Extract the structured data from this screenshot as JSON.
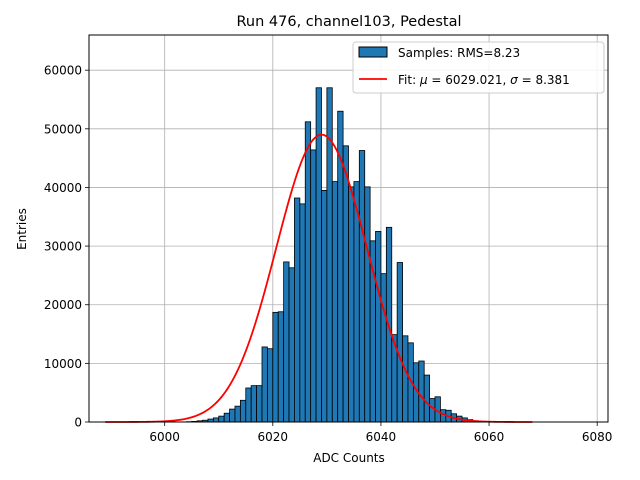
{
  "chart_data": {
    "type": "bar",
    "title": "Run 476, channel103, Pedestal",
    "xlabel": "ADC Counts",
    "ylabel": "Entries",
    "xlim": [
      5986,
      6082
    ],
    "ylim": [
      0,
      66000
    ],
    "xticks": [
      6000,
      6020,
      6040,
      6060,
      6080
    ],
    "yticks": [
      0,
      10000,
      20000,
      30000,
      40000,
      50000,
      60000
    ],
    "grid": true,
    "legend_position": "top-right",
    "colors": {
      "bars": "#1f77b4",
      "bar_edge": "#000000",
      "fit": "#ff0000",
      "grid": "#b0b0b0"
    },
    "histogram": {
      "name": "Samples: RMS=8.23",
      "bin_edges_start": 5990,
      "bin_width": 1,
      "counts": [
        0,
        0,
        0,
        0,
        0,
        0,
        0,
        0,
        0,
        0,
        0,
        0,
        0,
        20,
        50,
        100,
        200,
        300,
        500,
        700,
        1000,
        1500,
        2200,
        2700,
        3700,
        5800,
        6200,
        6200,
        12800,
        12500,
        18700,
        18800,
        27300,
        26300,
        38200,
        37200,
        51200,
        46400,
        57000,
        39500,
        57000,
        41000,
        53000,
        47100,
        40100,
        41000,
        46300,
        40100,
        30900,
        32500,
        25300,
        33200,
        14900,
        27200,
        14700,
        13500,
        10100,
        10400,
        8000,
        4000,
        4300,
        2100,
        2000,
        1400,
        1000,
        700,
        400,
        200,
        100,
        50,
        20,
        0,
        0,
        0,
        0,
        0,
        0,
        0,
        0,
        0,
        0,
        0,
        0,
        0,
        0,
        0
      ]
    },
    "fit": {
      "name_prefix": "Fit: ",
      "mu_symbol": "μ",
      "mu_text": " = 6029.021, ",
      "sigma_symbol": "σ",
      "sigma_text": " = 8.381",
      "mu": 6029.021,
      "sigma": 8.381,
      "amplitude": 49000,
      "x_range": [
        5989,
        6068
      ]
    }
  }
}
